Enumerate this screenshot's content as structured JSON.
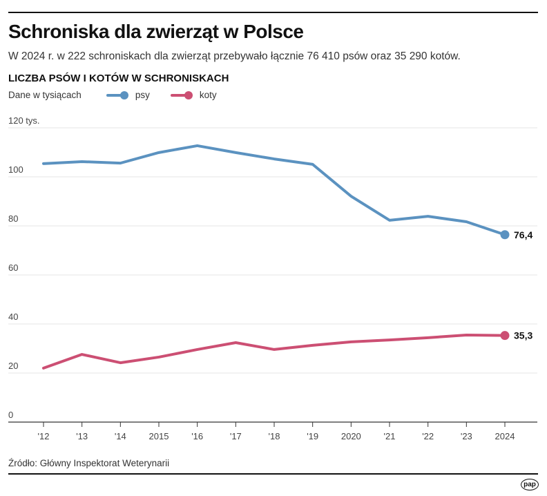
{
  "header": {
    "title": "Schroniska dla zwierząt w Polsce",
    "subtitle": "W 2024 r. w 222 schroniskach dla zwierząt przebywało łącznie 76 410 psów oraz 35 290 kotów."
  },
  "footer": {
    "source": "Źródło: Główny Inspektorat Weterynarii",
    "logo": "pap"
  },
  "chart_data": {
    "type": "line",
    "title": "LICZBA PSÓW I KOTÓW W SCHRONISKACH",
    "unit_note": "Dane w tysiącach",
    "categories": [
      "'12",
      "'13",
      "'14",
      "2015",
      "'16",
      "'17",
      "'18",
      "'19",
      "2020",
      "'21",
      "'22",
      "'23",
      "2024"
    ],
    "ylim": [
      0,
      120
    ],
    "yticks": [
      {
        "v": 120,
        "label": "120 tys."
      },
      {
        "v": 100,
        "label": "100"
      },
      {
        "v": 80,
        "label": "80"
      },
      {
        "v": 60,
        "label": "60"
      },
      {
        "v": 40,
        "label": "40"
      },
      {
        "v": 20,
        "label": "20"
      },
      {
        "v": 0,
        "label": "0"
      }
    ],
    "grid": true,
    "legend_placement": "top-left",
    "series": [
      {
        "name": "psy",
        "color": "#5b92c0",
        "values": [
          105.4,
          106.2,
          105.6,
          109.9,
          112.7,
          109.9,
          107.3,
          105.1,
          92.1,
          82.3,
          83.9,
          81.7,
          76.4
        ],
        "end_label": "76,4"
      },
      {
        "name": "koty",
        "color": "#cc4f73",
        "values": [
          22.0,
          27.6,
          24.2,
          26.5,
          29.6,
          32.4,
          29.6,
          31.3,
          32.7,
          33.5,
          34.4,
          35.5,
          35.3
        ],
        "end_label": "35,3"
      }
    ]
  }
}
